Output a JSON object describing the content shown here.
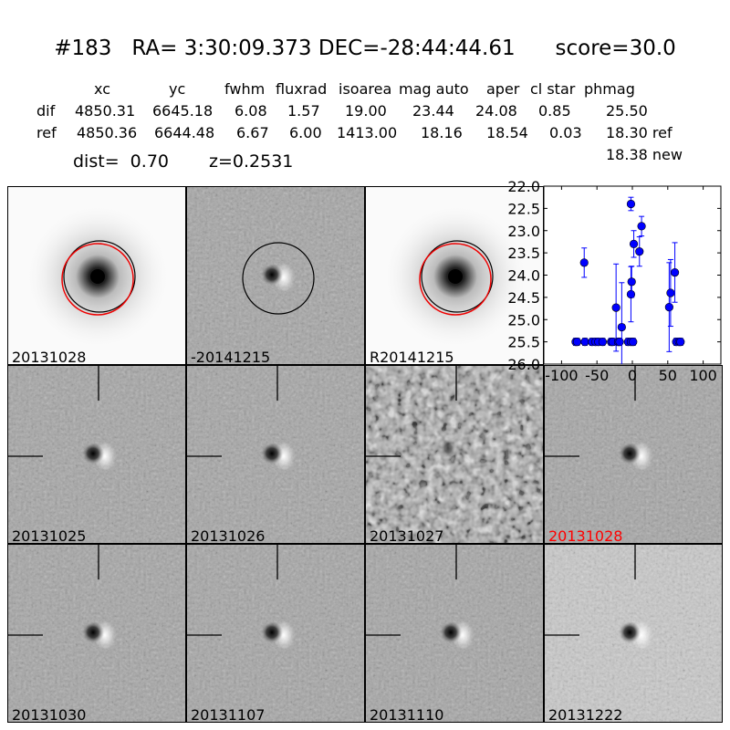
{
  "title": "#183   RA= 3:30:09.373 DEC=-28:44:44.61      score=30.0",
  "table": {
    "headers": [
      "xc",
      "yc",
      "fwhm",
      "fluxrad",
      "isoarea",
      "mag auto",
      "aper",
      "cl star",
      "phmag"
    ],
    "dif": [
      "dif",
      "4850.31",
      "6645.18",
      "6.08",
      "1.57",
      "19.00",
      "23.44",
      "24.08",
      "0.85",
      "25.50"
    ],
    "ref": [
      "ref",
      "4850.36",
      "6644.48",
      "6.67",
      "6.00",
      "1413.00",
      "18.16",
      "18.54",
      "0.03",
      "18.30 ref"
    ],
    "new": "18.38 new",
    "dist": "dist=  0.70",
    "z": "z=0.2531"
  },
  "stamps": [
    {
      "label": "20131028",
      "kind": "ref"
    },
    {
      "label": "-20141215",
      "kind": "diff-circle"
    },
    {
      "label": "R20141215",
      "kind": "ref"
    },
    {
      "label": "20131025",
      "kind": "dipole"
    },
    {
      "label": "20131026",
      "kind": "dipole"
    },
    {
      "label": "20131027",
      "kind": "noisy"
    },
    {
      "label": "20131028",
      "kind": "dipole",
      "highlight_color": "#ff0000"
    },
    {
      "label": "20131030",
      "kind": "dipole"
    },
    {
      "label": "20131107",
      "kind": "dipole"
    },
    {
      "label": "20131110",
      "kind": "dipole"
    },
    {
      "label": "20131222",
      "kind": "noisy-light"
    }
  ],
  "chart_data": {
    "type": "scatter",
    "title": "",
    "xlabel": "",
    "ylabel": "",
    "xlim": [
      -125,
      125
    ],
    "ylim": [
      26.0,
      22.0
    ],
    "y_inverted": true,
    "xticks": [
      "-100",
      "-50",
      "0",
      "50",
      "100"
    ],
    "yticks": [
      "22.0",
      "22.5",
      "23.0",
      "23.5",
      "24.0",
      "24.5",
      "25.0",
      "25.5",
      "26.0"
    ],
    "marker_color": "#0000ff",
    "points": [
      {
        "x": -80,
        "y": 25.5,
        "err": 0.08
      },
      {
        "x": -78,
        "y": 25.5,
        "err": 0.08
      },
      {
        "x": -68,
        "y": 23.72,
        "err": 0.33
      },
      {
        "x": -67,
        "y": 25.5,
        "err": 0.08
      },
      {
        "x": -57,
        "y": 25.5,
        "err": 0.08
      },
      {
        "x": -52,
        "y": 25.5,
        "err": 0.08
      },
      {
        "x": -48,
        "y": 25.5,
        "err": 0.08
      },
      {
        "x": -42,
        "y": 25.5,
        "err": 0.08
      },
      {
        "x": -30,
        "y": 25.5,
        "err": 0.08
      },
      {
        "x": -28,
        "y": 25.5,
        "err": 0.08
      },
      {
        "x": -23,
        "y": 24.73,
        "err": 0.98
      },
      {
        "x": -20,
        "y": 25.5,
        "err": 0.08
      },
      {
        "x": -18,
        "y": 25.5,
        "err": 0.08
      },
      {
        "x": -15,
        "y": 25.17,
        "err": 1.0
      },
      {
        "x": -6,
        "y": 25.5,
        "err": 0.08
      },
      {
        "x": -2,
        "y": 25.5,
        "err": 0.08
      },
      {
        "x": -2,
        "y": 22.4,
        "err": 0.15
      },
      {
        "x": -2,
        "y": 24.43,
        "err": 0.62
      },
      {
        "x": -1,
        "y": 24.15,
        "err": 0.35
      },
      {
        "x": 1,
        "y": 25.5,
        "err": 0.08
      },
      {
        "x": 2,
        "y": 23.3,
        "err": 0.3
      },
      {
        "x": 10,
        "y": 23.47,
        "err": 0.33
      },
      {
        "x": 13,
        "y": 22.9,
        "err": 0.22
      },
      {
        "x": 52,
        "y": 24.72,
        "err": 1.0
      },
      {
        "x": 54,
        "y": 24.4,
        "err": 0.75
      },
      {
        "x": 60,
        "y": 23.94,
        "err": 0.67
      },
      {
        "x": 62,
        "y": 25.5,
        "err": 0.08
      },
      {
        "x": 66,
        "y": 25.5,
        "err": 0.08
      },
      {
        "x": 68,
        "y": 25.5,
        "err": 0.08
      }
    ]
  }
}
